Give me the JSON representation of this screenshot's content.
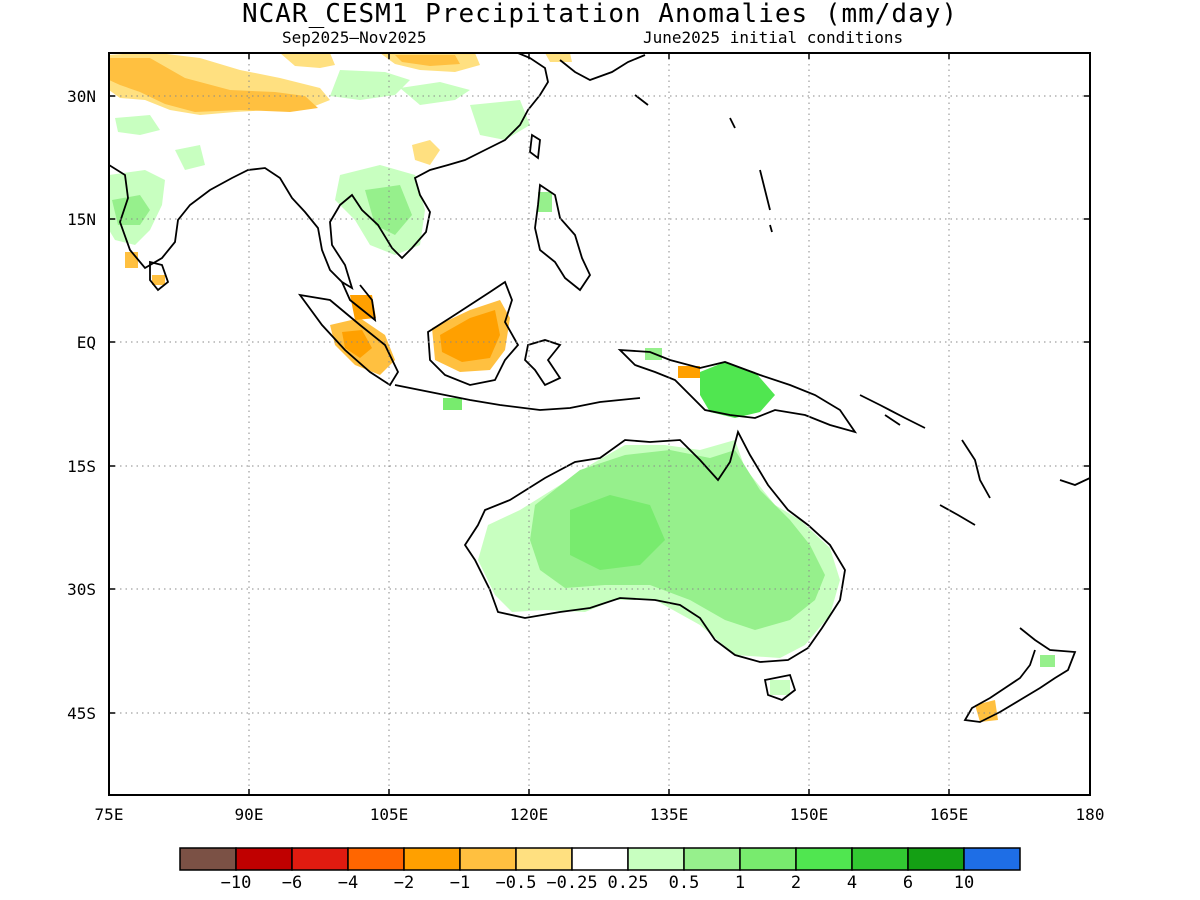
{
  "title": "NCAR_CESM1 Precipitation Anomalies (mm/day)",
  "subtitle_left": "Sep2025—Nov2025",
  "subtitle_right": "June2025 initial conditions",
  "map": {
    "lon_ticks": [
      "75E",
      "90E",
      "105E",
      "120E",
      "135E",
      "150E",
      "165E",
      "180"
    ],
    "lat_ticks": [
      "30N",
      "15N",
      "EQ",
      "15S",
      "30S",
      "45S"
    ],
    "lon_range": [
      75,
      180
    ],
    "lat_range": [
      -55,
      35
    ],
    "grid": "dotted"
  },
  "colorbar": {
    "colors": [
      "#7b5145",
      "#c00000",
      "#e01b10",
      "#ff6600",
      "#ffa000",
      "#ffc040",
      "#ffe080",
      "#ffffff",
      "#c8ffc0",
      "#96f08c",
      "#78eb6e",
      "#50e650",
      "#32c832",
      "#14a014",
      "#1e6ee6"
    ],
    "labels": [
      "−10",
      "−6",
      "−4",
      "−2",
      "−1",
      "−0.5",
      "−0.25",
      "0.25",
      "0.5",
      "1",
      "2",
      "4",
      "6",
      "10"
    ]
  },
  "anomalies": {
    "wet": [
      {
        "region": "Australia interior",
        "level": "0.5"
      },
      {
        "region": "New Guinea",
        "level": "2"
      },
      {
        "region": "Indochina",
        "level": "0.5"
      },
      {
        "region": "India west coast",
        "level": "0.5"
      }
    ],
    "dry": [
      {
        "region": "Borneo",
        "level": "-1"
      },
      {
        "region": "Sumatra",
        "level": "-1"
      },
      {
        "region": "Himalaya / Tibet",
        "level": "-0.5"
      }
    ]
  }
}
